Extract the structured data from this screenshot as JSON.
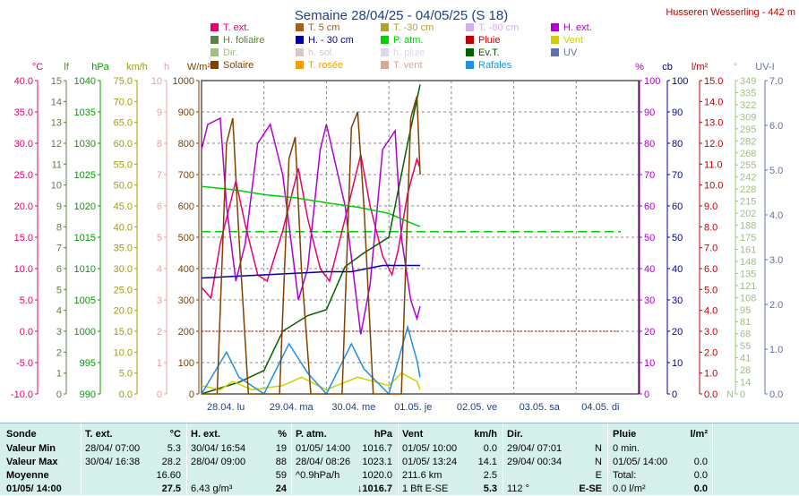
{
  "title": "Semaine 28/04/25 - 04/05/25 (S 18)",
  "station": "Husseren Wesserling - 442 m",
  "legend": [
    {
      "label": "T. ext.",
      "color": "#e8006e"
    },
    {
      "label": "T. 5 cm",
      "color": "#a06020"
    },
    {
      "label": "T. -30 cm",
      "color": "#b0a030"
    },
    {
      "label": "T. -80 cm",
      "color": "#d0b0f0"
    },
    {
      "label": "H. ext.",
      "color": "#b000d0"
    },
    {
      "label": "H. foliaire",
      "color": "#608040"
    },
    {
      "label": "H. - 30 cm",
      "color": "#0000a0"
    },
    {
      "label": "P. atm.",
      "color": "#00d000"
    },
    {
      "label": "Pluie",
      "color": "#c00000"
    },
    {
      "label": "Vent",
      "color": "#d0d000"
    },
    {
      "label": "Dir.",
      "color": "#a0c080"
    },
    {
      "label": "h. sol.",
      "color": "#d8c8c8"
    },
    {
      "label": "h. pluie",
      "color": "#d8d8f0"
    },
    {
      "label": "Ev.T.",
      "color": "#006000"
    },
    {
      "label": "UV",
      "color": "#6070b0"
    },
    {
      "label": "Solaire",
      "color": "#804000"
    },
    {
      "label": "T. rosée",
      "color": "#f0a000"
    },
    {
      "label": "T. vent",
      "color": "#d8a890"
    },
    {
      "label": "Rafales",
      "color": "#2090e0"
    }
  ],
  "axes_left": [
    {
      "unit": "°C",
      "color": "#e8006e",
      "ticks": [
        "40.0",
        "35.0",
        "30.0",
        "25.0",
        "20.0",
        "15.0",
        "10.0",
        "5.0",
        "0.0",
        "-5.0",
        "-10.0"
      ]
    },
    {
      "unit": "lf",
      "color": "#608040",
      "ticks": [
        "15",
        "14",
        "13",
        "12",
        "11",
        "10",
        "9",
        "8",
        "7",
        "6",
        "5",
        "4",
        "3",
        "2",
        "1",
        "0"
      ]
    },
    {
      "unit": "hPa",
      "color": "#00a000",
      "ticks": [
        "1040",
        "1035",
        "1030",
        "1025",
        "1020",
        "1015",
        "1010",
        "1005",
        "1000",
        "995",
        "990"
      ]
    },
    {
      "unit": "km/h",
      "color": "#a0a000",
      "ticks": [
        "75.0",
        "70.0",
        "65.0",
        "60.0",
        "55.0",
        "50.0",
        "45.0",
        "40.0",
        "35.0",
        "30.0",
        "25.0",
        "20.0",
        "15.0",
        "10.0",
        "5.0",
        "0.0"
      ]
    },
    {
      "unit": "h",
      "color": "#e8a0a0",
      "ticks": [
        "10",
        "9",
        "8",
        "7",
        "6",
        "5",
        "4",
        "3",
        "2",
        "1",
        "0"
      ]
    },
    {
      "unit": "W/m²",
      "color": "#804000",
      "ticks": [
        "1000",
        "900",
        "800",
        "700",
        "600",
        "500",
        "400",
        "300",
        "200",
        "100",
        "0"
      ]
    }
  ],
  "axes_right": [
    {
      "unit": "%",
      "color": "#b000d0",
      "ticks": [
        "100",
        "90",
        "80",
        "70",
        "60",
        "50",
        "40",
        "30",
        "20",
        "10",
        "0"
      ]
    },
    {
      "unit": "cb",
      "color": "#0000a0",
      "ticks": [
        "100",
        "90",
        "80",
        "70",
        "60",
        "50",
        "40",
        "30",
        "20",
        "10",
        "0"
      ]
    },
    {
      "unit": "l/m²",
      "color": "#c00000",
      "ticks": [
        "15.0",
        "14.0",
        "13.0",
        "12.0",
        "11.0",
        "10.0",
        "9.0",
        "8.0",
        "7.0",
        "6.0",
        "5.0",
        "4.0",
        "3.0",
        "2.0",
        "1.0",
        "0.0"
      ]
    },
    {
      "unit": "°",
      "color": "#a0c080",
      "ticks": [
        "349",
        "335",
        "322",
        "309",
        "295",
        "282",
        "268",
        "255",
        "242",
        "228",
        "215",
        "202",
        "188",
        "175",
        "161",
        "148",
        "135",
        "121",
        "108",
        "95",
        "81",
        "68",
        "55",
        "41",
        "28",
        "14",
        "0"
      ],
      "extra": "N"
    },
    {
      "unit": "UV-I",
      "color": "#6070b0",
      "ticks": [
        "7.0",
        "6.0",
        "5.0",
        "4.0",
        "3.0",
        "2.0",
        "1.0",
        "0.0"
      ]
    }
  ],
  "chart_data": {
    "type": "line",
    "x_categories": [
      "28.04. lu",
      "29.04. ma",
      "30.04. me",
      "01.05. je",
      "02.05. ve",
      "03.05. sa",
      "04.05. di"
    ],
    "x_range_days": [
      0,
      7
    ],
    "series": [
      {
        "name": "T. ext.",
        "axis": "°C",
        "ylim": [
          -10,
          40
        ],
        "color": "#e8006e",
        "points": [
          [
            0,
            7
          ],
          [
            0.15,
            5.3
          ],
          [
            0.3,
            14
          ],
          [
            0.55,
            24
          ],
          [
            0.7,
            17
          ],
          [
            0.9,
            9
          ],
          [
            1.05,
            8
          ],
          [
            1.3,
            16
          ],
          [
            1.55,
            26
          ],
          [
            1.7,
            18
          ],
          [
            1.9,
            10
          ],
          [
            2.05,
            8
          ],
          [
            2.3,
            18
          ],
          [
            2.55,
            28.2
          ],
          [
            2.7,
            20
          ],
          [
            2.9,
            12
          ],
          [
            3.05,
            9
          ],
          [
            3.15,
            13
          ],
          [
            3.3,
            22
          ],
          [
            3.45,
            27.5
          ],
          [
            3.5,
            26
          ]
        ]
      },
      {
        "name": "H. ext.",
        "axis": "%",
        "ylim": [
          0,
          100
        ],
        "color": "#b000d0",
        "points": [
          [
            0,
            78
          ],
          [
            0.1,
            86
          ],
          [
            0.3,
            88
          ],
          [
            0.4,
            60
          ],
          [
            0.55,
            36
          ],
          [
            0.7,
            48
          ],
          [
            0.9,
            80
          ],
          [
            1.1,
            86
          ],
          [
            1.3,
            70
          ],
          [
            1.55,
            30
          ],
          [
            1.7,
            40
          ],
          [
            1.9,
            78
          ],
          [
            2.0,
            86
          ],
          [
            2.3,
            60
          ],
          [
            2.55,
            19
          ],
          [
            2.7,
            35
          ],
          [
            2.9,
            78
          ],
          [
            3.1,
            84
          ],
          [
            3.2,
            50
          ],
          [
            3.35,
            30
          ],
          [
            3.45,
            24
          ],
          [
            3.5,
            28
          ]
        ]
      },
      {
        "name": "P. atm.",
        "axis": "hPa",
        "ylim": [
          990,
          1040
        ],
        "color": "#00d000",
        "points": [
          [
            0,
            1023.1
          ],
          [
            0.5,
            1022.6
          ],
          [
            1.0,
            1021.8
          ],
          [
            1.5,
            1021.3
          ],
          [
            2.0,
            1020.5
          ],
          [
            2.5,
            1019.8
          ],
          [
            3.0,
            1018.8
          ],
          [
            3.3,
            1017.5
          ],
          [
            3.5,
            1016.7
          ]
        ]
      },
      {
        "name": "Ev.T.",
        "axis": "l/m²",
        "ylim": [
          0,
          16
        ],
        "color": "#006000",
        "points": [
          [
            0,
            0
          ],
          [
            0.6,
            0.6
          ],
          [
            1.0,
            1.2
          ],
          [
            1.3,
            3.2
          ],
          [
            1.7,
            4.0
          ],
          [
            2.0,
            4.3
          ],
          [
            2.3,
            6.5
          ],
          [
            2.6,
            7.2
          ],
          [
            3.0,
            8.0
          ],
          [
            3.3,
            12.8
          ],
          [
            3.5,
            15.8
          ]
        ]
      },
      {
        "name": "H. - 30 cm",
        "axis": "cb",
        "ylim": [
          0,
          100
        ],
        "color": "#0000a0",
        "points": [
          [
            0,
            37
          ],
          [
            1.0,
            38
          ],
          [
            2.0,
            39
          ],
          [
            2.4,
            39
          ],
          [
            2.9,
            41
          ],
          [
            3.5,
            41
          ]
        ]
      },
      {
        "name": "Vent",
        "axis": "km/h",
        "ylim": [
          0,
          75
        ],
        "color": "#d0d000",
        "points": [
          [
            0,
            2
          ],
          [
            0.3,
            1
          ],
          [
            0.5,
            3
          ],
          [
            0.8,
            1
          ],
          [
            1.3,
            2
          ],
          [
            1.6,
            4
          ],
          [
            2.0,
            1
          ],
          [
            2.5,
            4
          ],
          [
            3.0,
            2
          ],
          [
            3.2,
            5
          ],
          [
            3.45,
            3
          ],
          [
            3.5,
            1
          ]
        ]
      },
      {
        "name": "Rafales",
        "axis": "km/h",
        "ylim": [
          0,
          75
        ],
        "color": "#2090e0",
        "points": [
          [
            0,
            0
          ],
          [
            0.4,
            10
          ],
          [
            0.6,
            4
          ],
          [
            1.0,
            0
          ],
          [
            1.4,
            12
          ],
          [
            1.7,
            5
          ],
          [
            2.0,
            0
          ],
          [
            2.4,
            12
          ],
          [
            2.6,
            6
          ],
          [
            3.0,
            0
          ],
          [
            3.3,
            16
          ],
          [
            3.45,
            8
          ],
          [
            3.5,
            4
          ]
        ]
      },
      {
        "name": "Solaire",
        "axis": "W/m²",
        "ylim": [
          0,
          1000
        ],
        "color": "#804000",
        "points": [
          [
            0,
            0
          ],
          [
            0.25,
            0
          ],
          [
            0.4,
            800
          ],
          [
            0.5,
            880
          ],
          [
            0.6,
            500
          ],
          [
            0.75,
            0
          ],
          [
            1.25,
            0
          ],
          [
            1.4,
            750
          ],
          [
            1.5,
            820
          ],
          [
            1.6,
            400
          ],
          [
            1.75,
            0
          ],
          [
            2.25,
            0
          ],
          [
            2.4,
            850
          ],
          [
            2.5,
            900
          ],
          [
            2.6,
            600
          ],
          [
            2.75,
            0
          ],
          [
            3.2,
            0
          ],
          [
            3.35,
            880
          ],
          [
            3.45,
            950
          ],
          [
            3.5,
            700
          ]
        ]
      }
    ],
    "reference_lines": [
      {
        "axis": "hPa",
        "value": 1015.9,
        "color": "#00d000",
        "style": "dashed"
      },
      {
        "axis": "°C",
        "value": 0,
        "color": "#c00000",
        "style": "dotted"
      }
    ]
  },
  "table": {
    "headers": {
      "col1": "Sonde",
      "col2": "T. ext.",
      "col2u": "°C",
      "col3": "H. ext.",
      "col3u": "%",
      "col4": "P. atm.",
      "col4u": "hPa",
      "col5": "Vent",
      "col5u": "km/h",
      "col6": "Dir.",
      "col7": "Pluie",
      "col7u": "l/m²"
    },
    "rows": [
      {
        "label": "Valeur Min",
        "t_date": "28/04/  07:00",
        "t_val": "5.3",
        "h_date": "30/04/  16:54",
        "h_val": "19",
        "p_date": "01/05/  14:00",
        "p_val": "1016.7",
        "v_date": "01/05/  10:00",
        "v_val": "0.0",
        "d_date": "29/04/  07:01",
        "d_val": "N",
        "r_date": "0 min.",
        "r_val": ""
      },
      {
        "label": "Valeur Max",
        "t_date": "30/04/  16:38",
        "t_val": "28.2",
        "h_date": "28/04/  09:00",
        "h_val": "88",
        "p_date": "28/04/  08:26",
        "p_val": "1023.1",
        "v_date": "01/05/  13:24",
        "v_val": "14.1",
        "d_date": "29/04/  00:34",
        "d_val": "N",
        "r_date": "01/05/  14:00",
        "r_val": "0.0"
      },
      {
        "label": "Moyenne",
        "t_date": "",
        "t_val": "16.60",
        "h_date": "",
        "h_val": "59",
        "p_date": "^0.9hPa/h",
        "p_val": "1020.0",
        "v_date": "211.6 km",
        "v_val": "2.5",
        "d_date": "",
        "d_val": "E",
        "r_date": "Total:",
        "r_val": "0.0"
      },
      {
        "label": "01/05/  14:00",
        "t_date": "",
        "t_val": "27.5",
        "h_date": "6.43 g/m³",
        "h_val": "24",
        "p_date": "",
        "p_val": "↓1016.7",
        "v_date": "1 Bft E-SE",
        "v_val": "5.3",
        "d_date": "112 °",
        "d_val": "E-SE",
        "r_date": "0.0 l/m²",
        "r_val": "0.0"
      }
    ]
  }
}
